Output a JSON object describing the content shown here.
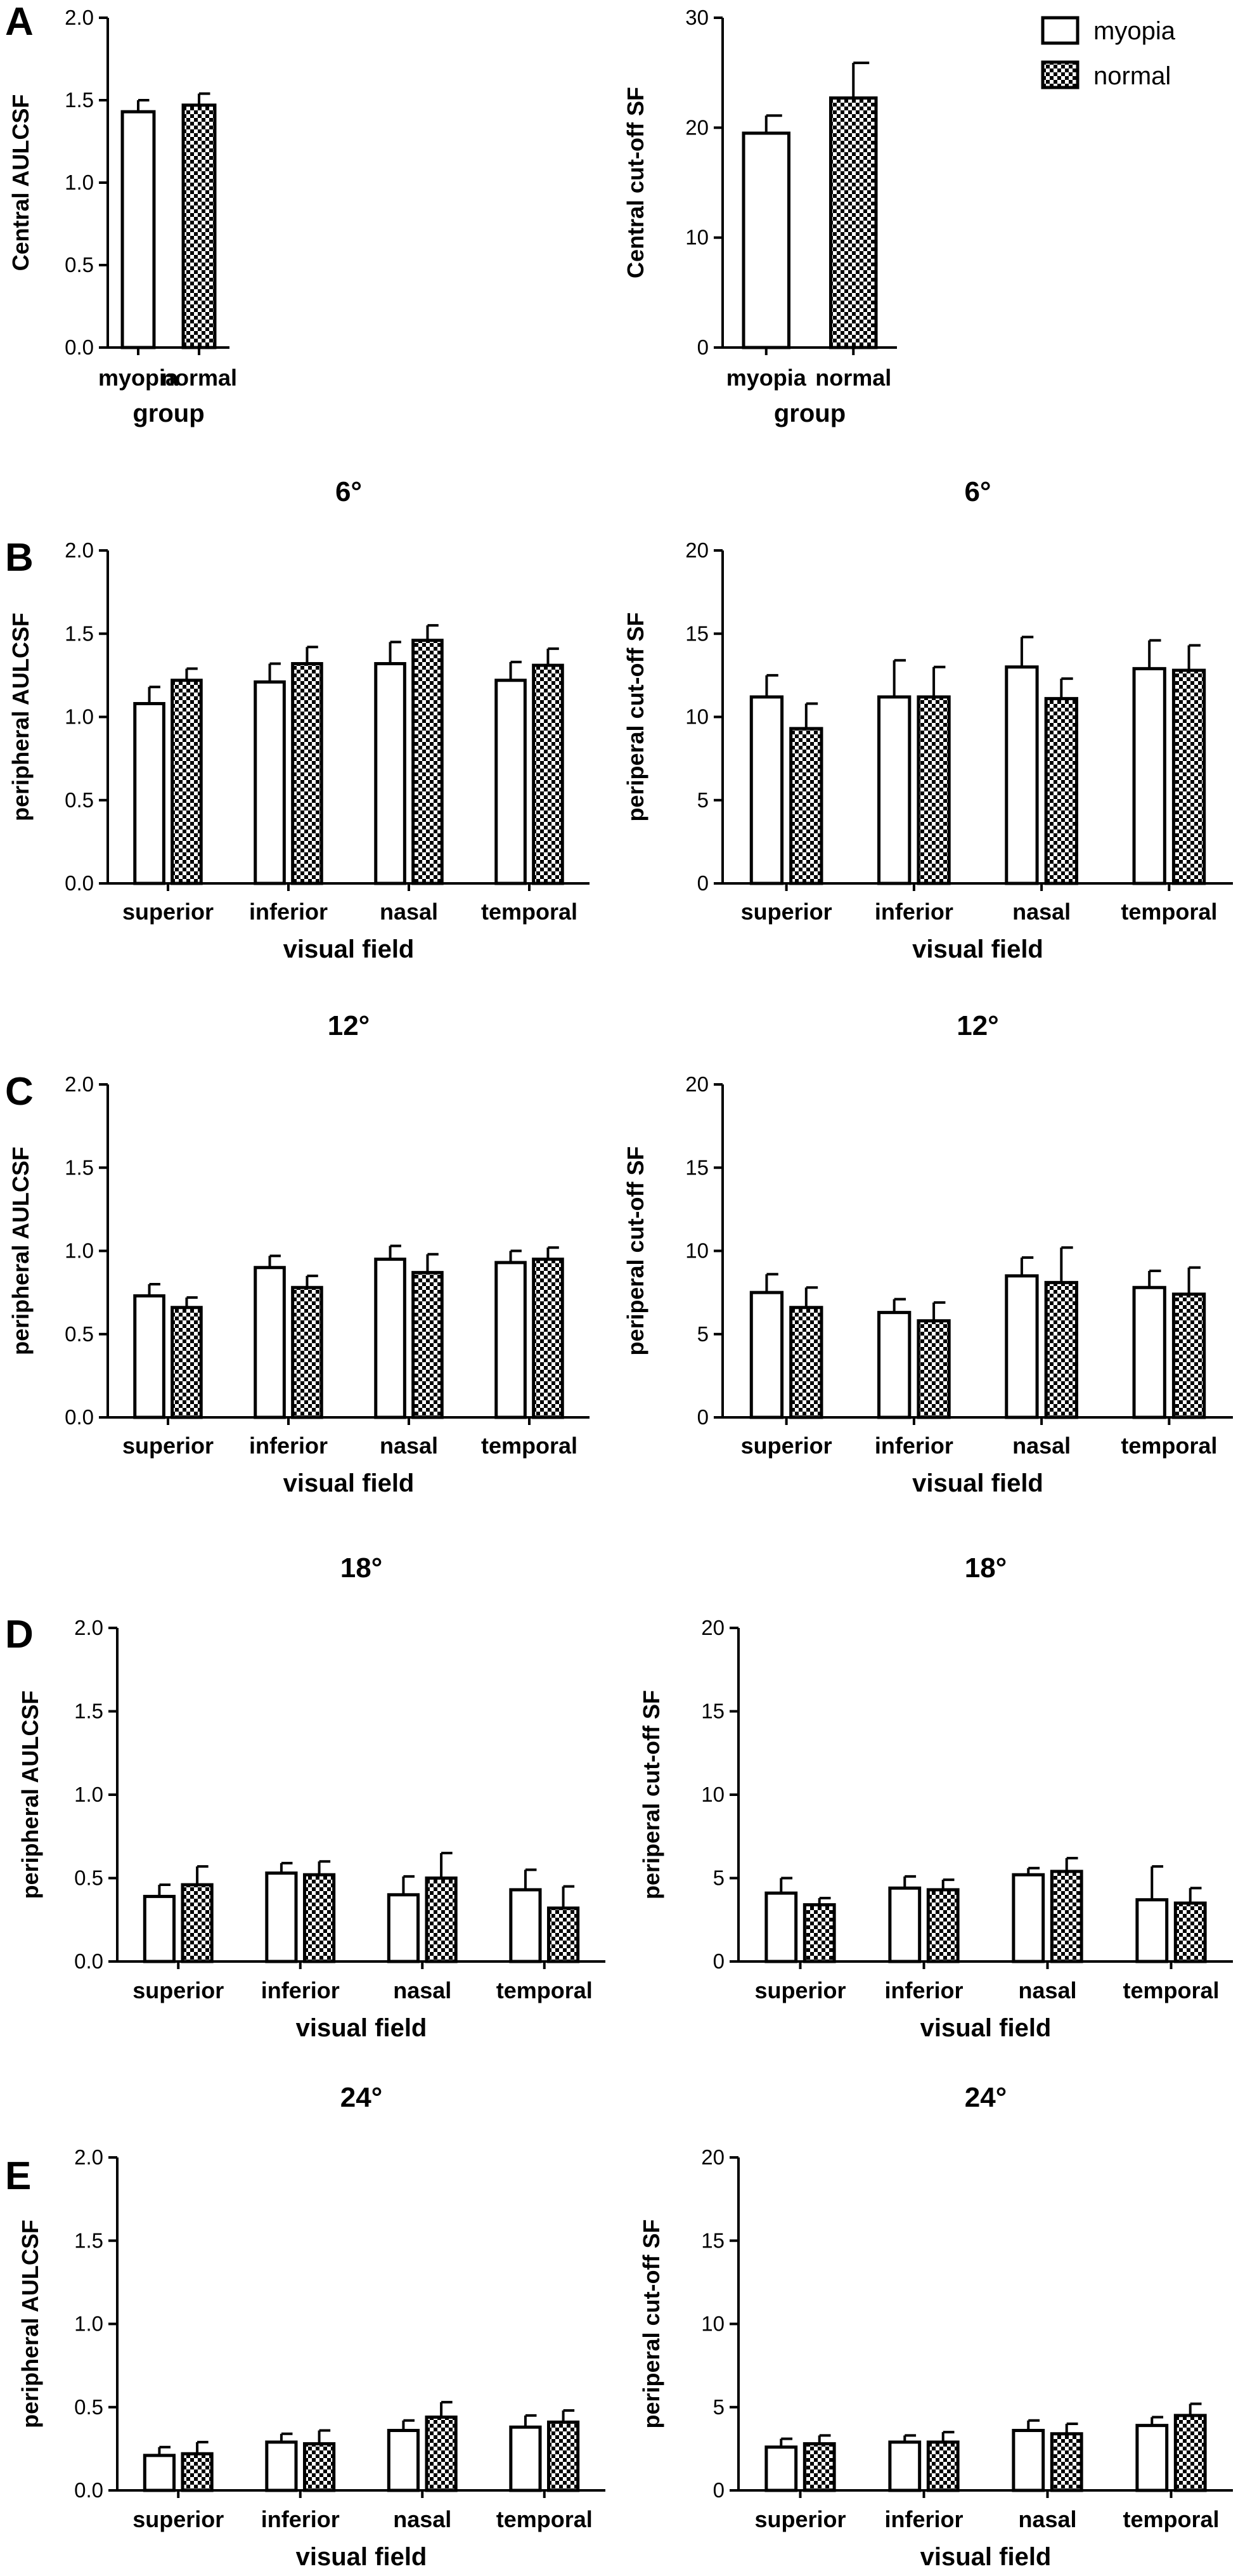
{
  "legend": {
    "myopia_label": "myopia",
    "normal_label": "normal"
  },
  "colors": {
    "ink": "#000000",
    "background": "#ffffff"
  },
  "chart_data": [
    {
      "id": "A-left",
      "panel_letter": "A",
      "type": "bar",
      "title": "",
      "ylabel": "Central AULCSF",
      "xlabel": "group",
      "ylim": [
        0,
        2.0
      ],
      "yticks": [
        0.0,
        0.5,
        1.0,
        1.5,
        2.0
      ],
      "ytick_labels": [
        "0.0",
        "0.5",
        "1.0",
        "1.5",
        "2.0"
      ],
      "categories": [
        "myopia",
        "normal"
      ],
      "grouped": false,
      "series": [
        {
          "name": "group",
          "values": [
            1.43,
            1.47
          ],
          "errors": [
            0.07,
            0.07
          ]
        }
      ]
    },
    {
      "id": "A-right",
      "panel_letter": "",
      "type": "bar",
      "title": "",
      "ylabel": "Central cut-off SF",
      "xlabel": "group",
      "ylim": [
        0,
        30
      ],
      "yticks": [
        0,
        10,
        20,
        30
      ],
      "ytick_labels": [
        "0",
        "10",
        "20",
        "30"
      ],
      "categories": [
        "myopia",
        "normal"
      ],
      "grouped": false,
      "series": [
        {
          "name": "group",
          "values": [
            19.5,
            22.7
          ],
          "errors": [
            1.6,
            3.2
          ]
        }
      ]
    },
    {
      "id": "B-left",
      "panel_letter": "B",
      "type": "bar",
      "title": "6°",
      "ylabel": "peripheral AULCSF",
      "xlabel": "visual field",
      "ylim": [
        0,
        2.0
      ],
      "yticks": [
        0.0,
        0.5,
        1.0,
        1.5,
        2.0
      ],
      "ytick_labels": [
        "0.0",
        "0.5",
        "1.0",
        "1.5",
        "2.0"
      ],
      "categories": [
        "superior",
        "inferior",
        "nasal",
        "temporal"
      ],
      "grouped": true,
      "series": [
        {
          "name": "myopia",
          "values": [
            1.08,
            1.21,
            1.32,
            1.22
          ],
          "errors": [
            0.1,
            0.11,
            0.13,
            0.11
          ]
        },
        {
          "name": "normal",
          "values": [
            1.22,
            1.32,
            1.46,
            1.31
          ],
          "errors": [
            0.07,
            0.1,
            0.09,
            0.1
          ]
        }
      ]
    },
    {
      "id": "B-right",
      "panel_letter": "",
      "type": "bar",
      "title": "6°",
      "ylabel": "periperal cut-off SF",
      "xlabel": "visual field",
      "ylim": [
        0,
        20
      ],
      "yticks": [
        0,
        5,
        10,
        15,
        20
      ],
      "ytick_labels": [
        "0",
        "5",
        "10",
        "15",
        "20"
      ],
      "categories": [
        "superior",
        "inferior",
        "nasal",
        "temporal"
      ],
      "grouped": true,
      "series": [
        {
          "name": "myopia",
          "values": [
            11.2,
            11.2,
            13.0,
            12.9
          ],
          "errors": [
            1.3,
            2.2,
            1.8,
            1.7
          ]
        },
        {
          "name": "normal",
          "values": [
            9.3,
            11.2,
            11.1,
            12.8
          ],
          "errors": [
            1.5,
            1.8,
            1.2,
            1.5
          ]
        }
      ]
    },
    {
      "id": "C-left",
      "panel_letter": "C",
      "type": "bar",
      "title": "12°",
      "ylabel": "peripheral AULCSF",
      "xlabel": "visual field",
      "ylim": [
        0,
        2.0
      ],
      "yticks": [
        0.0,
        0.5,
        1.0,
        1.5,
        2.0
      ],
      "ytick_labels": [
        "0.0",
        "0.5",
        "1.0",
        "1.5",
        "2.0"
      ],
      "categories": [
        "superior",
        "inferior",
        "nasal",
        "temporal"
      ],
      "grouped": true,
      "series": [
        {
          "name": "myopia",
          "values": [
            0.73,
            0.9,
            0.95,
            0.93
          ],
          "errors": [
            0.07,
            0.07,
            0.08,
            0.07
          ]
        },
        {
          "name": "normal",
          "values": [
            0.66,
            0.78,
            0.87,
            0.95
          ],
          "errors": [
            0.06,
            0.07,
            0.11,
            0.07
          ]
        }
      ]
    },
    {
      "id": "C-right",
      "panel_letter": "",
      "type": "bar",
      "title": "12°",
      "ylabel": "periperal cut-off SF",
      "xlabel": "visual field",
      "ylim": [
        0,
        20
      ],
      "yticks": [
        0,
        5,
        10,
        15,
        20
      ],
      "ytick_labels": [
        "0",
        "5",
        "10",
        "15",
        "20"
      ],
      "categories": [
        "superior",
        "inferior",
        "nasal",
        "temporal"
      ],
      "grouped": true,
      "series": [
        {
          "name": "myopia",
          "values": [
            7.5,
            6.3,
            8.5,
            7.8
          ],
          "errors": [
            1.1,
            0.8,
            1.1,
            1.0
          ]
        },
        {
          "name": "normal",
          "values": [
            6.6,
            5.8,
            8.1,
            7.4
          ],
          "errors": [
            1.2,
            1.1,
            2.1,
            1.6
          ]
        }
      ]
    },
    {
      "id": "D-left",
      "panel_letter": "D",
      "type": "bar",
      "title": "18°",
      "ylabel": "peripheral AULCSF",
      "xlabel": "visual field",
      "ylim": [
        0,
        2.0
      ],
      "yticks": [
        0.0,
        0.5,
        1.0,
        1.5,
        2.0
      ],
      "ytick_labels": [
        "0.0",
        "0.5",
        "1.0",
        "1.5",
        "2.0"
      ],
      "categories": [
        "superior",
        "inferior",
        "nasal",
        "temporal"
      ],
      "grouped": true,
      "series": [
        {
          "name": "myopia",
          "values": [
            0.39,
            0.53,
            0.4,
            0.43
          ],
          "errors": [
            0.07,
            0.06,
            0.11,
            0.12
          ]
        },
        {
          "name": "normal",
          "values": [
            0.46,
            0.52,
            0.5,
            0.32
          ],
          "errors": [
            0.11,
            0.08,
            0.15,
            0.13
          ]
        }
      ]
    },
    {
      "id": "D-right",
      "panel_letter": "",
      "type": "bar",
      "title": "18°",
      "ylabel": "periperal cut-off SF",
      "xlabel": "visual field",
      "ylim": [
        0,
        20
      ],
      "yticks": [
        0,
        5,
        10,
        15,
        20
      ],
      "ytick_labels": [
        "0",
        "5",
        "10",
        "15",
        "20"
      ],
      "categories": [
        "superior",
        "inferior",
        "nasal",
        "temporal"
      ],
      "grouped": true,
      "series": [
        {
          "name": "myopia",
          "values": [
            4.1,
            4.4,
            5.2,
            3.7
          ],
          "errors": [
            0.9,
            0.7,
            0.4,
            2.0
          ]
        },
        {
          "name": "normal",
          "values": [
            3.4,
            4.3,
            5.4,
            3.5
          ],
          "errors": [
            0.4,
            0.6,
            0.8,
            0.9
          ]
        }
      ]
    },
    {
      "id": "E-left",
      "panel_letter": "E",
      "type": "bar",
      "title": "24°",
      "ylabel": "peripheral AULCSF",
      "xlabel": "visual field",
      "ylim": [
        0,
        2.0
      ],
      "yticks": [
        0.0,
        0.5,
        1.0,
        1.5,
        2.0
      ],
      "ytick_labels": [
        "0.0",
        "0.5",
        "1.0",
        "1.5",
        "2.0"
      ],
      "categories": [
        "superior",
        "inferior",
        "nasal",
        "temporal"
      ],
      "grouped": true,
      "series": [
        {
          "name": "myopia",
          "values": [
            0.21,
            0.29,
            0.36,
            0.38
          ],
          "errors": [
            0.05,
            0.05,
            0.06,
            0.07
          ]
        },
        {
          "name": "normal",
          "values": [
            0.22,
            0.28,
            0.44,
            0.41
          ],
          "errors": [
            0.07,
            0.08,
            0.09,
            0.07
          ]
        }
      ]
    },
    {
      "id": "E-right",
      "panel_letter": "",
      "type": "bar",
      "title": "24°",
      "ylabel": "periperal cut-off SF",
      "xlabel": "visual field",
      "ylim": [
        0,
        20
      ],
      "yticks": [
        0,
        5,
        10,
        15,
        20
      ],
      "ytick_labels": [
        "0",
        "5",
        "10",
        "15",
        "20"
      ],
      "categories": [
        "superior",
        "inferior",
        "nasal",
        "temporal"
      ],
      "grouped": true,
      "series": [
        {
          "name": "myopia",
          "values": [
            2.6,
            2.9,
            3.6,
            3.9
          ],
          "errors": [
            0.5,
            0.4,
            0.6,
            0.5
          ]
        },
        {
          "name": "normal",
          "values": [
            2.8,
            2.9,
            3.4,
            4.5
          ],
          "errors": [
            0.5,
            0.6,
            0.6,
            0.7
          ]
        }
      ]
    }
  ]
}
